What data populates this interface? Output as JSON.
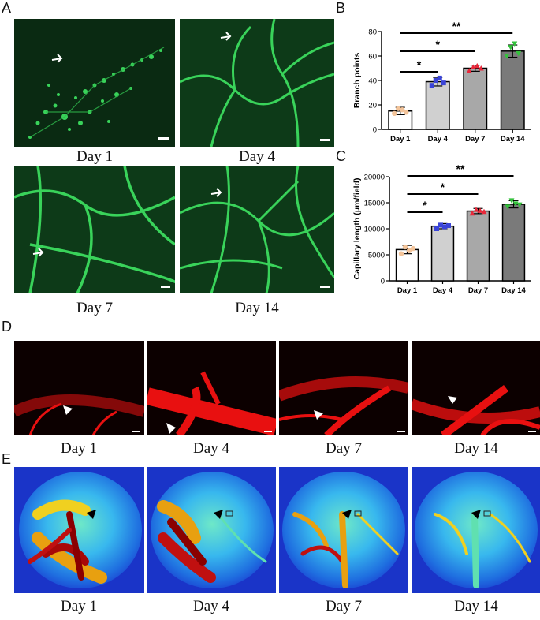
{
  "panel_labels": {
    "a": "A",
    "b": "B",
    "c": "C",
    "d": "D",
    "e": "E"
  },
  "a_captions": [
    "Day 1",
    "Day 4",
    "Day 7",
    "Day 14"
  ],
  "d_captions": [
    "Day 1",
    "Day 4",
    "Day 7",
    "Day 14"
  ],
  "e_captions": [
    "Day 1",
    "Day 4",
    "Day 7",
    "Day 14"
  ],
  "colors": {
    "green_bg": "#0a2a12",
    "green_vessel": "#39d35a",
    "red_bg": "#0c0000",
    "red_vessel": "#e81010",
    "bar_day1": "#ffffff",
    "bar_day4": "#d0d0d0",
    "bar_day7": "#a8a8a8",
    "bar_day14": "#7a7a7a",
    "dot_day1": "#f3c49a",
    "dot_day4": "#3a44d8",
    "dot_day7": "#e8283a",
    "dot_day14": "#34c23c"
  },
  "chart_data": [
    {
      "type": "bar",
      "panel": "B",
      "categories": [
        "Day 1",
        "Day 4",
        "Day 7",
        "Day 14"
      ],
      "values": [
        15,
        39,
        50,
        64
      ],
      "errors": [
        3,
        3.5,
        2.5,
        5
      ],
      "points": [
        [
          13,
          17,
          16,
          14
        ],
        [
          36,
          40,
          42,
          38
        ],
        [
          48,
          51,
          52,
          50
        ],
        [
          60,
          67,
          70,
          62
        ]
      ],
      "ylabel": "Branch points",
      "ylim": [
        0,
        80
      ],
      "yticks": [
        "0",
        "20",
        "40",
        "60",
        "80"
      ],
      "significance": [
        {
          "from": "Day 1",
          "to": "Day 4",
          "label": "*"
        },
        {
          "from": "Day 1",
          "to": "Day 7",
          "label": "*"
        },
        {
          "from": "Day 1",
          "to": "Day 14",
          "label": "**"
        }
      ]
    },
    {
      "type": "bar",
      "panel": "C",
      "categories": [
        "Day 1",
        "Day 4",
        "Day 7",
        "Day 14"
      ],
      "values": [
        6000,
        10500,
        13400,
        14700
      ],
      "errors": [
        800,
        500,
        500,
        700
      ],
      "points": [
        [
          5200,
          6500,
          5800,
          6200
        ],
        [
          10000,
          10700,
          10400,
          10600
        ],
        [
          13000,
          13700,
          13500,
          13300
        ],
        [
          14200,
          15400,
          14800,
          14600
        ]
      ],
      "ylabel": "Capillary length (μm/field)",
      "ylim": [
        0,
        20000
      ],
      "yticks": [
        "0",
        "5000",
        "10000",
        "15000",
        "20000"
      ],
      "significance": [
        {
          "from": "Day 1",
          "to": "Day 4",
          "label": "*"
        },
        {
          "from": "Day 1",
          "to": "Day 7",
          "label": "*"
        },
        {
          "from": "Day 1",
          "to": "Day 14",
          "label": "**"
        }
      ]
    }
  ]
}
